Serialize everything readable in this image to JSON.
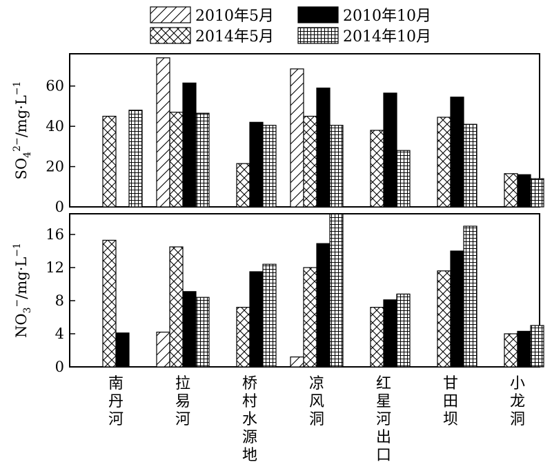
{
  "chart_data": [
    {
      "type": "bar",
      "ylabel": "SO42−/mg·L−1",
      "ylabel_parts": {
        "base": "SO",
        "sub": "4",
        "sup": "2−",
        "rest": "/mg·L",
        "rest_sup": "−1"
      },
      "ylim": [
        0,
        76
      ],
      "yticks": [
        0,
        20,
        40,
        60
      ],
      "categories": [
        "南丹河",
        "拉易河",
        "桥村水源地",
        "凉风洞",
        "红星河出口",
        "甘田坝",
        "小龙洞"
      ],
      "series": [
        {
          "name": "2010年5月",
          "values": [
            null,
            74,
            null,
            68.5,
            null,
            null,
            null
          ]
        },
        {
          "name": "2014年5月",
          "values": [
            45,
            47,
            21.5,
            45,
            38,
            44.5,
            16.5
          ]
        },
        {
          "name": "2010年10月",
          "values": [
            null,
            61.5,
            42,
            59,
            56.5,
            54.5,
            16
          ]
        },
        {
          "name": "2014年10月",
          "values": [
            48,
            46.5,
            40.5,
            40.5,
            28,
            41,
            14
          ]
        }
      ]
    },
    {
      "type": "bar",
      "ylabel": "NO3−/mg·L−1",
      "ylabel_parts": {
        "base": "NO",
        "sub": "3",
        "sup": "−",
        "rest": "/mg·L",
        "rest_sup": "−1"
      },
      "ylim": [
        0,
        18.5
      ],
      "yticks": [
        0,
        4,
        8,
        12,
        16
      ],
      "categories": [
        "南丹河",
        "拉易河",
        "桥村水源地",
        "凉风洞",
        "红星河出口",
        "甘田坝",
        "小龙洞"
      ],
      "series": [
        {
          "name": "2010年5月",
          "values": [
            null,
            4.2,
            null,
            1.2,
            null,
            null,
            null
          ]
        },
        {
          "name": "2014年5月",
          "values": [
            15.3,
            14.5,
            7.2,
            12,
            7.2,
            11.6,
            4
          ]
        },
        {
          "name": "2010年10月",
          "values": [
            4.1,
            9.1,
            11.5,
            14.9,
            8.1,
            14,
            4.3
          ]
        },
        {
          "name": "2014年10月",
          "values": [
            null,
            8.4,
            12.4,
            18.5,
            8.8,
            17,
            5
          ]
        }
      ]
    }
  ],
  "legend": {
    "placement": "top",
    "items": [
      {
        "label": "2010年5月",
        "pattern": "diagonal-hatch"
      },
      {
        "label": "2010年10月",
        "pattern": "solid-black"
      },
      {
        "label": "2014年5月",
        "pattern": "cross-hatch"
      },
      {
        "label": "2014年10月",
        "pattern": "grid"
      }
    ]
  }
}
